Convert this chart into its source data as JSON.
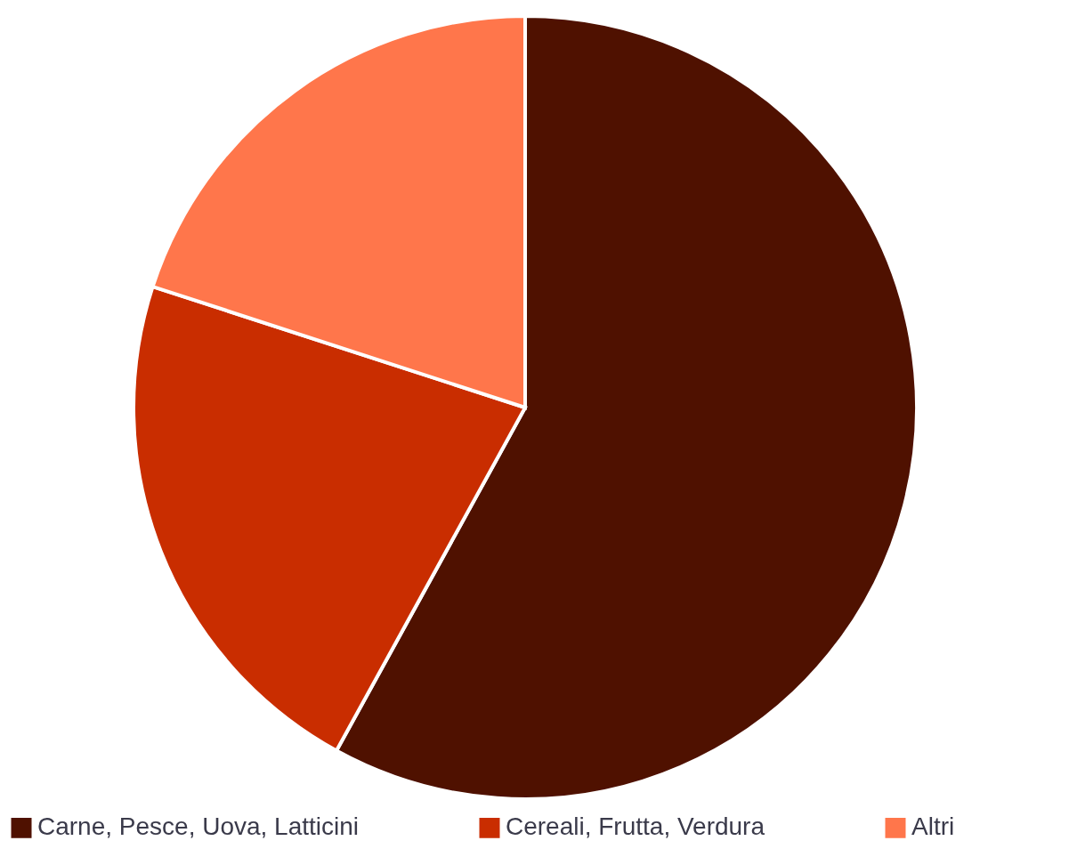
{
  "chart_data": {
    "type": "pie",
    "categories": [
      "Carne, Pesce, Uova, Latticini",
      "Cereali, Frutta, Verdura",
      "Altri"
    ],
    "values": [
      58,
      22,
      20
    ],
    "colors": [
      "#4f1100",
      "#c92d00",
      "#ff764b"
    ],
    "legend": "bottom"
  }
}
